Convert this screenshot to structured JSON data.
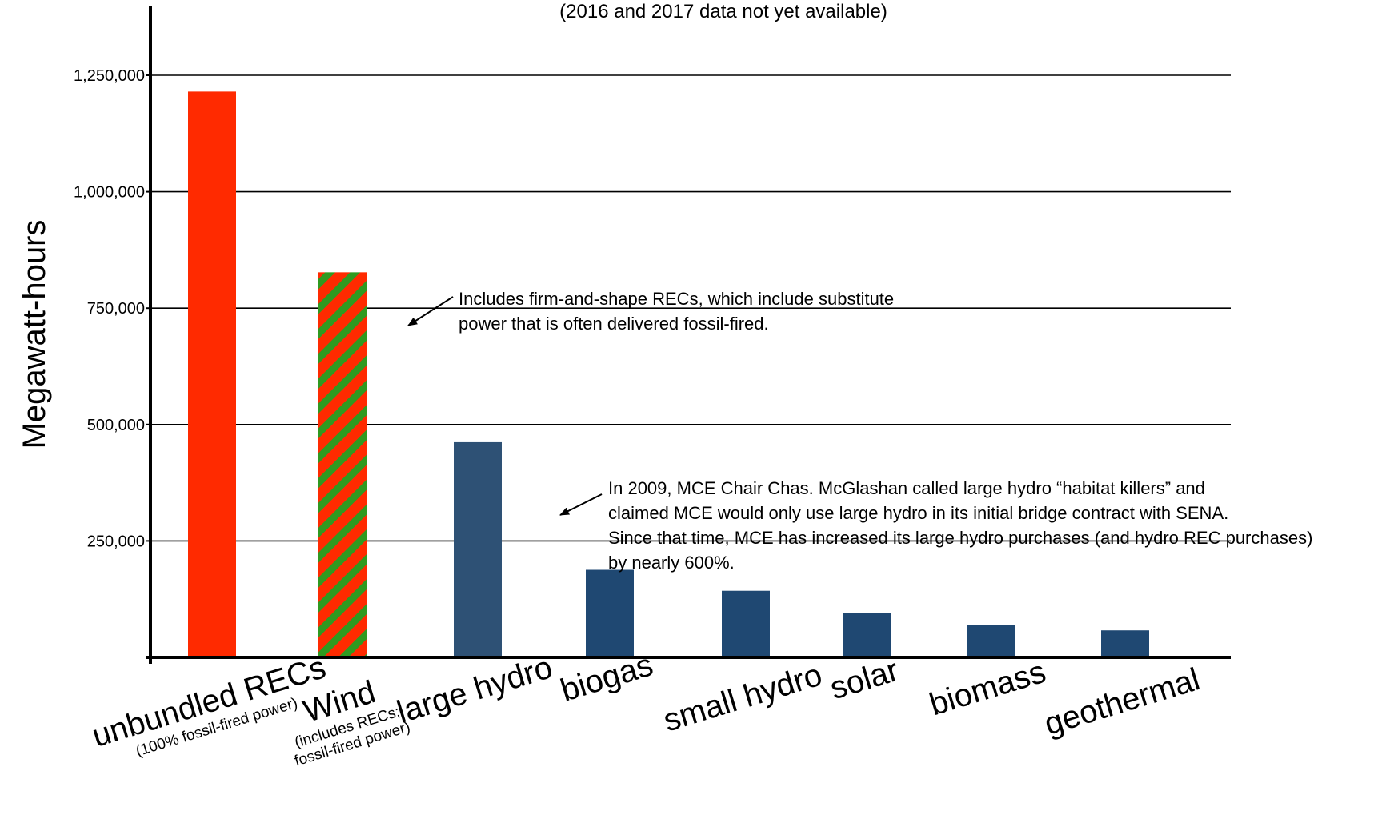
{
  "chart_data": {
    "type": "bar",
    "title": "",
    "subtitle": "(2016 and 2017 data not yet available)",
    "xlabel": "",
    "ylabel": "Megawatt-hours",
    "ylim": [
      0,
      1380000
    ],
    "grid": true,
    "yticks": [
      {
        "value": 250000,
        "label": "250,000"
      },
      {
        "value": 500000,
        "label": "500,000"
      },
      {
        "value": 750000,
        "label": "750,000"
      },
      {
        "value": 1000000,
        "label": "1,000,000"
      },
      {
        "value": 1250000,
        "label": "1,250,000"
      }
    ],
    "categories": [
      {
        "label": "unbundled RECs",
        "sublabel": [
          "(100% fossil-fired power)"
        ],
        "value": 1215000,
        "color": "#ff2a00",
        "pattern": "solid"
      },
      {
        "label": "Wind",
        "sublabel": [
          "(includes RECs;",
          "fossil-fired power)"
        ],
        "value": 827000,
        "color": "#ff2a00",
        "stripe_color": "#2f9a20",
        "pattern": "striped"
      },
      {
        "label": "large hydro",
        "sublabel": [],
        "value": 462000,
        "color": "#2e5175",
        "pattern": "solid"
      },
      {
        "label": "biogas",
        "sublabel": [],
        "value": 188000,
        "color": "#1f4872",
        "pattern": "solid"
      },
      {
        "label": "small hydro",
        "sublabel": [],
        "value": 143000,
        "color": "#1f4872",
        "pattern": "solid"
      },
      {
        "label": "solar",
        "sublabel": [],
        "value": 96000,
        "color": "#1f4872",
        "pattern": "solid"
      },
      {
        "label": "biomass",
        "sublabel": [],
        "value": 70000,
        "color": "#1f4872",
        "pattern": "solid"
      },
      {
        "label": "geothermal",
        "sublabel": [],
        "value": 58000,
        "color": "#1f4872",
        "pattern": "solid"
      }
    ],
    "annotations": [
      {
        "target": "Wind",
        "lines": [
          "Includes firm-and-shape RECs, which include substitute",
          "power that is often delivered fossil-fired."
        ]
      },
      {
        "target": "large hydro",
        "lines": [
          "In 2009, MCE Chair Chas. McGlashan called large hydro “habitat killers” and",
          "claimed MCE would only use large hydro in its initial bridge contract with SENA.",
          "Since that time, MCE has increased its large hydro purchases (and hydro REC purchases)",
          "by nearly 600%."
        ]
      }
    ]
  }
}
